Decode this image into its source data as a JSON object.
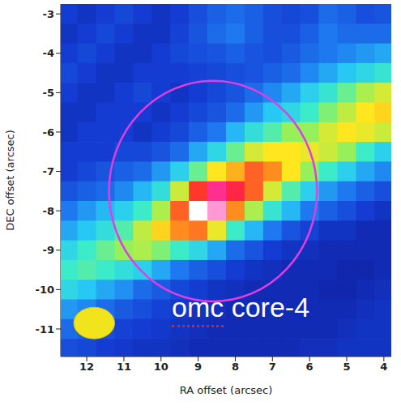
{
  "chart_data": {
    "type": "heatmap",
    "xlabel": "RA offset (arcsec)",
    "ylabel": "DEC offset (arcsec)",
    "xlim": [
      12.7,
      3.8
    ],
    "xticks": [
      12,
      11,
      10,
      9,
      8,
      7,
      6,
      5,
      4
    ],
    "ylim": [
      -11.7,
      -2.75
    ],
    "yticks": [
      -3,
      -4,
      -5,
      -6,
      -7,
      -8,
      -9,
      -10,
      -11
    ],
    "annotation": "omc core-4",
    "zlim": [
      0,
      1
    ],
    "circle": {
      "x": 8.6,
      "y": -7.5,
      "radius": 2.8
    },
    "beam": {
      "x": 11.8,
      "y": -10.85,
      "major": 1.1,
      "minor": 0.8
    },
    "cells": {
      "x": [
        12.5,
        12,
        11.5,
        11,
        10.5,
        10,
        9.5,
        9,
        8.5,
        8,
        7.5,
        7,
        6.5,
        6,
        5.5,
        5,
        4.5,
        4
      ],
      "y": [
        -3,
        -3.5,
        -4,
        -4.5,
        -5,
        -5.5,
        -6,
        -6.5,
        -7,
        -7.5,
        -8,
        -8.5,
        -9,
        -9.5,
        -10,
        -10.5,
        -11,
        -11.5
      ],
      "values": [
        [
          0.12,
          0.1,
          0.12,
          0.14,
          0.12,
          0.1,
          0.12,
          0.15,
          0.18,
          0.2,
          0.18,
          0.15,
          0.14,
          0.15,
          0.2,
          0.18,
          0.15,
          0.16
        ],
        [
          0.1,
          0.12,
          0.14,
          0.12,
          0.1,
          0.1,
          0.13,
          0.16,
          0.2,
          0.22,
          0.18,
          0.15,
          0.15,
          0.18,
          0.22,
          0.2,
          0.2,
          0.2
        ],
        [
          0.12,
          0.14,
          0.12,
          0.1,
          0.1,
          0.12,
          0.14,
          0.15,
          0.16,
          0.18,
          0.16,
          0.15,
          0.17,
          0.2,
          0.22,
          0.24,
          0.26,
          0.28
        ],
        [
          0.14,
          0.12,
          0.1,
          0.1,
          0.12,
          0.12,
          0.12,
          0.13,
          0.14,
          0.15,
          0.16,
          0.18,
          0.2,
          0.24,
          0.28,
          0.32,
          0.36,
          0.4
        ],
        [
          0.12,
          0.1,
          0.1,
          0.12,
          0.14,
          0.12,
          0.1,
          0.12,
          0.14,
          0.16,
          0.2,
          0.24,
          0.28,
          0.34,
          0.4,
          0.46,
          0.52,
          0.56
        ],
        [
          0.1,
          0.1,
          0.12,
          0.12,
          0.12,
          0.1,
          0.12,
          0.14,
          0.16,
          0.2,
          0.26,
          0.32,
          0.36,
          0.42,
          0.48,
          0.54,
          0.6,
          0.62
        ],
        [
          0.1,
          0.12,
          0.12,
          0.12,
          0.1,
          0.12,
          0.14,
          0.18,
          0.22,
          0.3,
          0.38,
          0.44,
          0.5,
          0.5,
          0.56,
          0.6,
          0.58,
          0.55
        ],
        [
          0.12,
          0.12,
          0.12,
          0.14,
          0.14,
          0.16,
          0.2,
          0.28,
          0.36,
          0.46,
          0.56,
          0.6,
          0.6,
          0.58,
          0.55,
          0.5,
          0.42,
          0.34
        ],
        [
          0.12,
          0.14,
          0.16,
          0.18,
          0.2,
          0.26,
          0.34,
          0.46,
          0.6,
          0.66,
          0.74,
          0.7,
          0.6,
          0.5,
          0.42,
          0.34,
          0.28,
          0.24
        ],
        [
          0.16,
          0.18,
          0.2,
          0.24,
          0.3,
          0.38,
          0.55,
          0.78,
          0.88,
          0.82,
          0.74,
          0.56,
          0.44,
          0.34,
          0.26,
          0.22,
          0.18,
          0.15
        ],
        [
          0.22,
          0.26,
          0.3,
          0.34,
          0.42,
          0.52,
          0.74,
          1.0,
          0.95,
          0.7,
          0.52,
          0.4,
          0.3,
          0.22,
          0.18,
          0.15,
          0.12,
          0.1
        ],
        [
          0.28,
          0.32,
          0.38,
          0.44,
          0.54,
          0.62,
          0.7,
          0.72,
          0.58,
          0.42,
          0.3,
          0.22,
          0.16,
          0.13,
          0.1,
          0.1,
          0.08,
          0.08
        ],
        [
          0.36,
          0.42,
          0.46,
          0.5,
          0.52,
          0.48,
          0.42,
          0.36,
          0.28,
          0.2,
          0.16,
          0.12,
          0.1,
          0.09,
          0.08,
          0.08,
          0.08,
          0.08
        ],
        [
          0.42,
          0.44,
          0.42,
          0.38,
          0.34,
          0.28,
          0.22,
          0.18,
          0.15,
          0.12,
          0.1,
          0.09,
          0.08,
          0.08,
          0.08,
          0.07,
          0.07,
          0.08
        ],
        [
          0.36,
          0.32,
          0.28,
          0.25,
          0.2,
          0.17,
          0.14,
          0.12,
          0.1,
          0.09,
          0.08,
          0.08,
          0.08,
          0.08,
          0.07,
          0.07,
          0.08,
          0.09
        ],
        [
          0.26,
          0.24,
          0.2,
          0.17,
          0.15,
          0.13,
          0.11,
          0.1,
          0.09,
          0.08,
          0.08,
          0.08,
          0.08,
          0.08,
          0.08,
          0.08,
          0.09,
          0.1
        ],
        [
          0.2,
          0.18,
          0.15,
          0.13,
          0.12,
          0.11,
          0.1,
          0.09,
          0.08,
          0.08,
          0.08,
          0.08,
          0.08,
          0.08,
          0.08,
          0.09,
          0.1,
          0.1
        ],
        [
          0.15,
          0.14,
          0.12,
          0.11,
          0.1,
          0.1,
          0.09,
          0.08,
          0.08,
          0.08,
          0.08,
          0.08,
          0.08,
          0.09,
          0.09,
          0.1,
          0.1,
          0.1
        ]
      ]
    }
  }
}
